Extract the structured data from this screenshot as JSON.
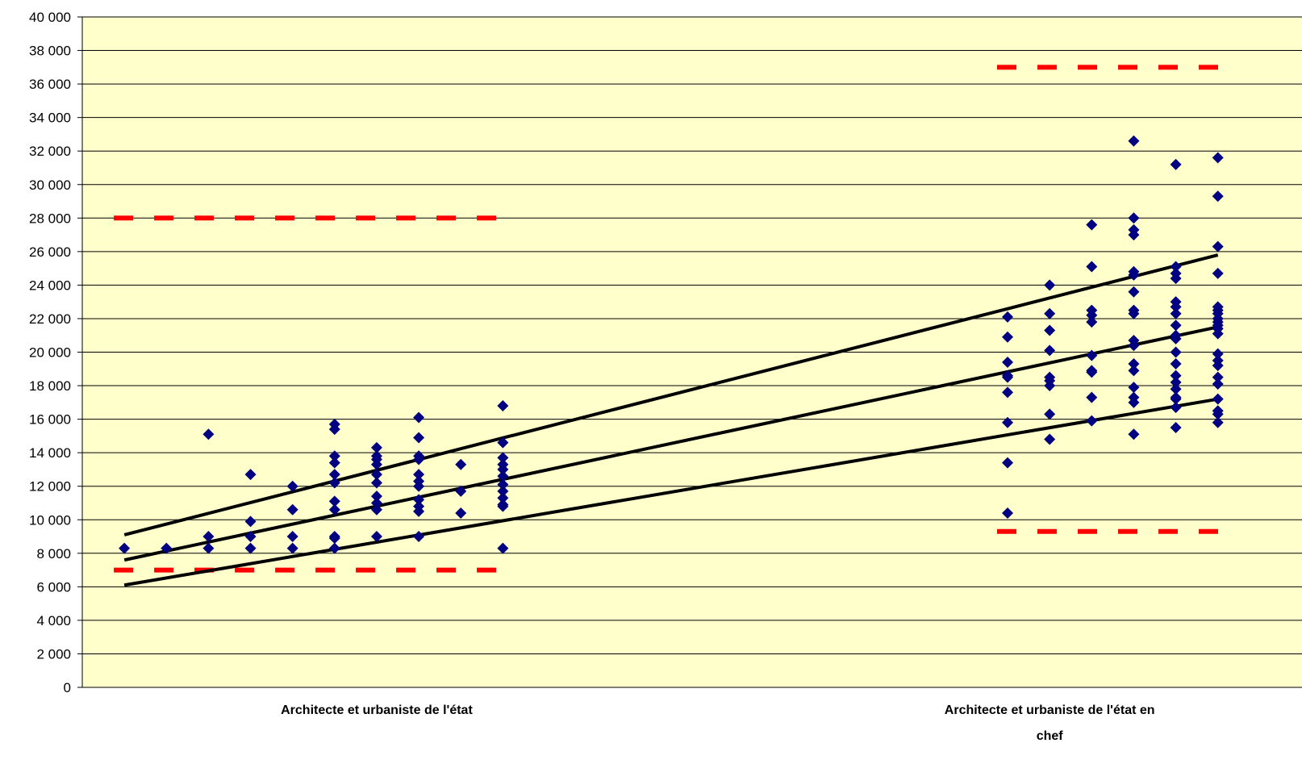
{
  "chart_data": {
    "type": "scatter",
    "title": "",
    "xlabel": "",
    "ylabel": "",
    "ylim": [
      0,
      40000
    ],
    "y_tick_labels": [
      "0",
      "2 000",
      "4 000",
      "6 000",
      "8 000",
      "10 000",
      "12 000",
      "14 000",
      "16 000",
      "18 000",
      "20 000",
      "22 000",
      "24 000",
      "26 000",
      "28 000",
      "30 000",
      "32 000",
      "34 000",
      "36 000",
      "38 000",
      "40 000"
    ],
    "category_labels": [
      {
        "text": "Architecte et urbaniste de l'état",
        "x_index": 7
      },
      {
        "text": "Architecte et urbaniste de l'état en",
        "text2": "chef",
        "x_index": 23
      }
    ],
    "x_index_range": [
      0,
      29
    ],
    "grid": "horizontal",
    "legend": "none",
    "colors": {
      "plot_background": "#ffffcc",
      "points": "#000080",
      "trend_lines": "#000000",
      "bounds": "#ff0000"
    },
    "points": [
      [
        1,
        8300
      ],
      [
        2,
        8300
      ],
      [
        3,
        15100
      ],
      [
        3,
        9000
      ],
      [
        3,
        8300
      ],
      [
        4,
        12700
      ],
      [
        4,
        9900
      ],
      [
        4,
        9000
      ],
      [
        4,
        8300
      ],
      [
        5,
        12000
      ],
      [
        5,
        10600
      ],
      [
        5,
        9000
      ],
      [
        5,
        8300
      ],
      [
        6,
        15700
      ],
      [
        6,
        15400
      ],
      [
        6,
        13800
      ],
      [
        6,
        13400
      ],
      [
        6,
        12700
      ],
      [
        6,
        12200
      ],
      [
        6,
        11100
      ],
      [
        6,
        10600
      ],
      [
        6,
        9000
      ],
      [
        6,
        8900
      ],
      [
        6,
        8300
      ],
      [
        7,
        14300
      ],
      [
        7,
        13800
      ],
      [
        7,
        13600
      ],
      [
        7,
        13300
      ],
      [
        7,
        12700
      ],
      [
        7,
        12200
      ],
      [
        7,
        11400
      ],
      [
        7,
        11000
      ],
      [
        7,
        10600
      ],
      [
        7,
        9000
      ],
      [
        8,
        16100
      ],
      [
        8,
        14900
      ],
      [
        8,
        13800
      ],
      [
        8,
        13600
      ],
      [
        8,
        12700
      ],
      [
        8,
        12300
      ],
      [
        8,
        12000
      ],
      [
        8,
        11200
      ],
      [
        8,
        10800
      ],
      [
        8,
        10500
      ],
      [
        8,
        9000
      ],
      [
        9,
        13300
      ],
      [
        9,
        11700
      ],
      [
        9,
        10400
      ],
      [
        10,
        16800
      ],
      [
        10,
        14600
      ],
      [
        10,
        13700
      ],
      [
        10,
        13300
      ],
      [
        10,
        13000
      ],
      [
        10,
        12600
      ],
      [
        10,
        12100
      ],
      [
        10,
        11700
      ],
      [
        10,
        11300
      ],
      [
        10,
        10900
      ],
      [
        10,
        10800
      ],
      [
        10,
        8300
      ],
      [
        22,
        22100
      ],
      [
        22,
        20900
      ],
      [
        22,
        19400
      ],
      [
        22,
        18600
      ],
      [
        22,
        18500
      ],
      [
        22,
        17600
      ],
      [
        22,
        15800
      ],
      [
        22,
        13400
      ],
      [
        22,
        10400
      ],
      [
        23,
        24000
      ],
      [
        23,
        22300
      ],
      [
        23,
        21300
      ],
      [
        23,
        20100
      ],
      [
        23,
        18500
      ],
      [
        23,
        18300
      ],
      [
        23,
        18000
      ],
      [
        23,
        16300
      ],
      [
        23,
        14800
      ],
      [
        24,
        27600
      ],
      [
        24,
        25100
      ],
      [
        24,
        22500
      ],
      [
        24,
        22200
      ],
      [
        24,
        21800
      ],
      [
        24,
        19800
      ],
      [
        24,
        18900
      ],
      [
        24,
        18800
      ],
      [
        24,
        17300
      ],
      [
        24,
        15900
      ],
      [
        25,
        32600
      ],
      [
        25,
        28000
      ],
      [
        25,
        27300
      ],
      [
        25,
        27000
      ],
      [
        25,
        24800
      ],
      [
        25,
        24600
      ],
      [
        25,
        23600
      ],
      [
        25,
        22500
      ],
      [
        25,
        22300
      ],
      [
        25,
        20700
      ],
      [
        25,
        20400
      ],
      [
        25,
        19300
      ],
      [
        25,
        18900
      ],
      [
        25,
        17900
      ],
      [
        25,
        17300
      ],
      [
        25,
        17000
      ],
      [
        25,
        15100
      ],
      [
        26,
        31200
      ],
      [
        26,
        25100
      ],
      [
        26,
        24700
      ],
      [
        26,
        24400
      ],
      [
        26,
        23000
      ],
      [
        26,
        22700
      ],
      [
        26,
        22300
      ],
      [
        26,
        21600
      ],
      [
        26,
        21000
      ],
      [
        26,
        20800
      ],
      [
        26,
        20000
      ],
      [
        26,
        19300
      ],
      [
        26,
        18600
      ],
      [
        26,
        18200
      ],
      [
        26,
        17800
      ],
      [
        26,
        17300
      ],
      [
        26,
        17200
      ],
      [
        26,
        16700
      ],
      [
        26,
        15500
      ],
      [
        27,
        31600
      ],
      [
        27,
        29300
      ],
      [
        27,
        26300
      ],
      [
        27,
        24700
      ],
      [
        27,
        22700
      ],
      [
        27,
        22500
      ],
      [
        27,
        22300
      ],
      [
        27,
        22000
      ],
      [
        27,
        21800
      ],
      [
        27,
        21600
      ],
      [
        27,
        21400
      ],
      [
        27,
        21100
      ],
      [
        27,
        19900
      ],
      [
        27,
        19500
      ],
      [
        27,
        19200
      ],
      [
        27,
        18500
      ],
      [
        27,
        18100
      ],
      [
        27,
        17200
      ],
      [
        27,
        16500
      ],
      [
        27,
        16300
      ],
      [
        27,
        15800
      ]
    ],
    "trend_lines": [
      {
        "x": [
          1,
          27
        ],
        "y": [
          9100,
          25800
        ]
      },
      {
        "x": [
          1,
          27
        ],
        "y": [
          7600,
          21500
        ]
      },
      {
        "x": [
          1,
          27
        ],
        "y": [
          6100,
          17200
        ]
      }
    ],
    "bounds": [
      {
        "x": [
          0.75,
          10.25
        ],
        "y": 28000
      },
      {
        "x": [
          0.75,
          10.25
        ],
        "y": 7000
      },
      {
        "x": [
          21.75,
          27.25
        ],
        "y": 37000
      },
      {
        "x": [
          21.75,
          27.25
        ],
        "y": 9300
      }
    ]
  }
}
